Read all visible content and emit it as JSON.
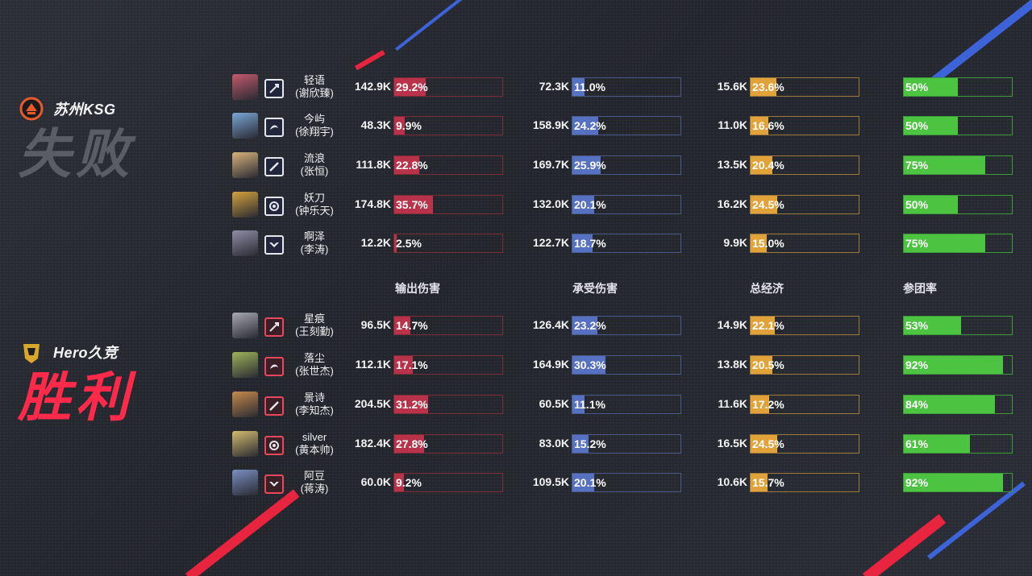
{
  "colors": {
    "damage_fill": "#b8334a",
    "damage_border": "#7c2b37",
    "taken_fill": "#5670c2",
    "taken_border": "#4a5a8a",
    "gold_fill": "#e2a23a",
    "gold_border": "#9c7a3f",
    "kp_fill": "#4cc341",
    "kp_border": "#3c9a39",
    "win": "#ff2a4a",
    "lose": "#5a5d66"
  },
  "teams": {
    "top": {
      "name": "苏州KSG",
      "result": "失败",
      "logo_icon": "ksg-logo-icon"
    },
    "bottom": {
      "name": "Hero久竞",
      "result": "胜利",
      "logo_icon": "hero-logo-icon"
    }
  },
  "columns": {
    "damage": "输出伤害",
    "taken": "承受伤害",
    "gold": "总经济",
    "kp": "参团率"
  },
  "top_players": [
    {
      "name": "轻语",
      "real": "(谢欣臻)",
      "role_icon": "marksman-role-icon",
      "avatar": "#c45a6e",
      "damage": "142.9K",
      "damage_pct": "29.2%",
      "damage_frac": 0.292,
      "taken": "72.3K",
      "taken_pct": "11.0%",
      "taken_frac": 0.11,
      "gold": "15.6K",
      "gold_pct": "23.6%",
      "gold_frac": 0.236,
      "kp": "50%",
      "kp_frac": 0.5
    },
    {
      "name": "今屿",
      "real": "(徐翔宇)",
      "role_icon": "jungle-role-icon",
      "avatar": "#7aa7d8",
      "damage": "48.3K",
      "damage_pct": "9.9%",
      "damage_frac": 0.099,
      "taken": "158.9K",
      "taken_pct": "24.2%",
      "taken_frac": 0.242,
      "gold": "11.0K",
      "gold_pct": "16.6%",
      "gold_frac": 0.166,
      "kp": "50%",
      "kp_frac": 0.5
    },
    {
      "name": "流浪",
      "real": "(张恒)",
      "role_icon": "clash-role-icon",
      "avatar": "#d9b27c",
      "damage": "111.8K",
      "damage_pct": "22.8%",
      "damage_frac": 0.228,
      "taken": "169.7K",
      "taken_pct": "25.9%",
      "taken_frac": 0.259,
      "gold": "13.5K",
      "gold_pct": "20.4%",
      "gold_frac": 0.204,
      "kp": "75%",
      "kp_frac": 0.75
    },
    {
      "name": "妖刀",
      "real": "(钟乐天)",
      "role_icon": "mid-role-icon",
      "avatar": "#d6a33c",
      "damage": "174.8K",
      "damage_pct": "35.7%",
      "damage_frac": 0.357,
      "taken": "132.0K",
      "taken_pct": "20.1%",
      "taken_frac": 0.201,
      "gold": "16.2K",
      "gold_pct": "24.5%",
      "gold_frac": 0.245,
      "kp": "50%",
      "kp_frac": 0.5
    },
    {
      "name": "啊泽",
      "real": "(李涛)",
      "role_icon": "support-role-icon",
      "avatar": "#8f8ea6",
      "damage": "12.2K",
      "damage_pct": "2.5%",
      "damage_frac": 0.025,
      "taken": "122.7K",
      "taken_pct": "18.7%",
      "taken_frac": 0.187,
      "gold": "9.9K",
      "gold_pct": "15.0%",
      "gold_frac": 0.15,
      "kp": "75%",
      "kp_frac": 0.75
    }
  ],
  "bottom_players": [
    {
      "name": "星痕",
      "real": "(王刻勤)",
      "role_icon": "marksman-role-icon",
      "avatar": "#a9a9b4",
      "damage": "96.5K",
      "damage_pct": "14.7%",
      "damage_frac": 0.147,
      "taken": "126.4K",
      "taken_pct": "23.2%",
      "taken_frac": 0.232,
      "gold": "14.9K",
      "gold_pct": "22.1%",
      "gold_frac": 0.221,
      "kp": "53%",
      "kp_frac": 0.53
    },
    {
      "name": "落尘",
      "real": "(张世杰)",
      "role_icon": "jungle-role-icon",
      "avatar": "#9fb45a",
      "damage": "112.1K",
      "damage_pct": "17.1%",
      "damage_frac": 0.171,
      "taken": "164.9K",
      "taken_pct": "30.3%",
      "taken_frac": 0.303,
      "gold": "13.8K",
      "gold_pct": "20.5%",
      "gold_frac": 0.205,
      "kp": "92%",
      "kp_frac": 0.92
    },
    {
      "name": "景诗",
      "real": "(李知杰)",
      "role_icon": "clash-role-icon",
      "avatar": "#c78a4c",
      "damage": "204.5K",
      "damage_pct": "31.2%",
      "damage_frac": 0.312,
      "taken": "60.5K",
      "taken_pct": "11.1%",
      "taken_frac": 0.111,
      "gold": "11.6K",
      "gold_pct": "17.2%",
      "gold_frac": 0.172,
      "kp": "84%",
      "kp_frac": 0.84
    },
    {
      "name": "silver",
      "real": "(黄本帅)",
      "role_icon": "mid-role-icon",
      "avatar": "#d4bb6e",
      "damage": "182.4K",
      "damage_pct": "27.8%",
      "damage_frac": 0.278,
      "taken": "83.0K",
      "taken_pct": "15.2%",
      "taken_frac": 0.152,
      "gold": "16.5K",
      "gold_pct": "24.5%",
      "gold_frac": 0.245,
      "kp": "61%",
      "kp_frac": 0.61
    },
    {
      "name": "阿豆",
      "real": "(蒋涛)",
      "role_icon": "support-role-icon",
      "avatar": "#7b8fc4",
      "damage": "60.0K",
      "damage_pct": "9.2%",
      "damage_frac": 0.092,
      "taken": "109.5K",
      "taken_pct": "20.1%",
      "taken_frac": 0.201,
      "gold": "10.6K",
      "gold_pct": "15.7%",
      "gold_frac": 0.157,
      "kp": "92%",
      "kp_frac": 0.92
    }
  ]
}
